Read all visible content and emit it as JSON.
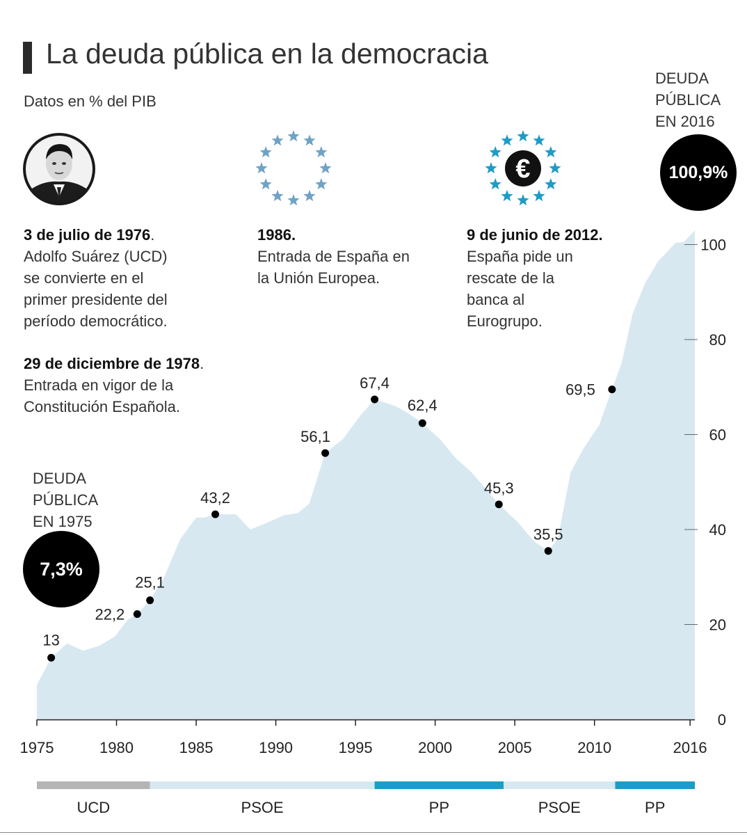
{
  "title": "La deuda pública en la democracia",
  "subtitle": "Datos en % del PIB",
  "annotations": {
    "a1_title": "3 de julio de 1976",
    "a1_text": [
      "Adolfo Suárez (UCD)",
      "se convierte en el",
      "primer presidente del",
      "período democrático."
    ],
    "a2_title": "29 de diciembre de 1978",
    "a2_text": [
      "Entrada en vigor de la",
      "Constitución Española."
    ],
    "a3_title": "1986.",
    "a3_text": [
      "Entrada de España en",
      "la Unión Europea."
    ],
    "a4_title": "9 de junio de 2012.",
    "a4_text": [
      "España pide un",
      "rescate de la",
      "banca al",
      "Eurogrupo."
    ]
  },
  "debt_1975": {
    "label": [
      "DEUDA",
      "PÚBLICA",
      "EN 1975"
    ],
    "value": "7,3%"
  },
  "debt_2016": {
    "label": [
      "DEUDA",
      "PÚBLICA",
      "EN 2016"
    ],
    "value": "100,9%"
  },
  "euro_symbol": "€",
  "colors": {
    "area": "#d7e8f1",
    "ucd": "#b5b5b5",
    "psoe": "#d7e8f1",
    "pp": "#1d9cc7",
    "stars_eu": "#6fa3c6",
    "stars_euro": "#1d9cc7"
  },
  "chart_data": {
    "type": "area",
    "title": "La deuda pública en la democracia",
    "ylabel": "Datos en % del PIB",
    "xlim": [
      1975,
      2016.3
    ],
    "ylim": [
      0,
      103
    ],
    "x_ticks": [
      1975,
      1980,
      1985,
      1990,
      1995,
      2000,
      2005,
      2010,
      2016
    ],
    "x_tick_labels": [
      "1975",
      "1980",
      "1985",
      "1990",
      "1995",
      "2000",
      "2005",
      "2010",
      "2016"
    ],
    "y_ticks": [
      0,
      20,
      40,
      60,
      80,
      100
    ],
    "y_tick_labels": [
      "0",
      "20",
      "40",
      "60",
      "80",
      "100"
    ],
    "x": [
      1975,
      1975.9,
      1976.9,
      1977.9,
      1978.9,
      1979.9,
      1980.7,
      1981.3,
      1982.1,
      1983,
      1984,
      1985,
      1985.5,
      1986.2,
      1986.5,
      1987.5,
      1988.4,
      1989.5,
      1990.5,
      1991.4,
      1992.1,
      1993.1,
      1994.2,
      1995.3,
      1996.2,
      1997.5,
      1998.3,
      1999.2,
      2000.3,
      2001.3,
      2002.3,
      2003.2,
      2004.0,
      2005.2,
      2006.2,
      2007.1,
      2007.7,
      2008.5,
      2009.3,
      2010.3,
      2011.1,
      2011.7,
      2012.4,
      2013.2,
      2014.0,
      2015.1,
      2015.6,
      2016.3
    ],
    "y": [
      7.3,
      13,
      16,
      14.5,
      15.5,
      17.5,
      21,
      22.2,
      25.1,
      30,
      38,
      42.5,
      42.5,
      43.2,
      43.2,
      43.2,
      40,
      41.5,
      43,
      43.5,
      45.5,
      56.1,
      59,
      64,
      67.4,
      66,
      64.5,
      62.4,
      59,
      55,
      52,
      48.5,
      45.3,
      41.5,
      37.5,
      35.5,
      38,
      52,
      57,
      62,
      69.5,
      75,
      85.5,
      92,
      96.5,
      100.4,
      100.5,
      103
    ],
    "labeled_points": [
      {
        "x": 1975.9,
        "y": 13,
        "label": "13"
      },
      {
        "x": 1981.3,
        "y": 22.2,
        "label": "22,2"
      },
      {
        "x": 1982.1,
        "y": 25.1,
        "label": "25,1"
      },
      {
        "x": 1986.2,
        "y": 43.2,
        "label": "43,2"
      },
      {
        "x": 1993.1,
        "y": 56.1,
        "label": "56,1"
      },
      {
        "x": 1996.2,
        "y": 67.4,
        "label": "67,4"
      },
      {
        "x": 1999.2,
        "y": 62.4,
        "label": "62,4"
      },
      {
        "x": 2004.0,
        "y": 45.3,
        "label": "45,3"
      },
      {
        "x": 2007.1,
        "y": 35.5,
        "label": "35,5"
      },
      {
        "x": 2011.1,
        "y": 69.5,
        "label": "69,5"
      }
    ],
    "governments": [
      {
        "party": "UCD",
        "start": 1975,
        "end": 1982.1,
        "color": "#b5b5b5"
      },
      {
        "party": "PSOE",
        "start": 1982.1,
        "end": 1996.2,
        "color": "#d7e8f1"
      },
      {
        "party": "PP",
        "start": 1996.2,
        "end": 2004.3,
        "color": "#1d9cc7"
      },
      {
        "party": "PSOE",
        "start": 2004.3,
        "end": 2011.3,
        "color": "#d7e8f1"
      },
      {
        "party": "PP",
        "start": 2011.3,
        "end": 2016.3,
        "color": "#1d9cc7"
      }
    ]
  }
}
